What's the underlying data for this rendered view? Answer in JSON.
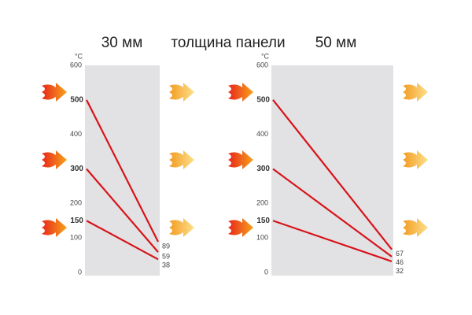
{
  "caption": "толщина панели",
  "chart_data": [
    {
      "type": "line",
      "title": "30 мм",
      "y_label": "°C",
      "categories": [
        null,
        null
      ],
      "ylim": [
        0,
        600
      ],
      "yticks": [
        0,
        100,
        200,
        400,
        600
      ],
      "series": [
        {
          "name": null,
          "color": "#d7141a",
          "values": [
            500,
            89
          ]
        },
        {
          "name": null,
          "color": "#d7141a",
          "values": [
            300,
            59
          ]
        },
        {
          "name": null,
          "color": "#d7141a",
          "values": [
            150,
            38
          ]
        }
      ]
    },
    {
      "type": "line",
      "title": "50 мм",
      "y_label": "°C",
      "categories": [
        null,
        null
      ],
      "ylim": [
        0,
        600
      ],
      "yticks": [
        0,
        100,
        200,
        400,
        600
      ],
      "series": [
        {
          "name": null,
          "color": "#d7141a",
          "values": [
            500,
            67
          ]
        },
        {
          "name": null,
          "color": "#d7141a",
          "values": [
            300,
            46
          ]
        },
        {
          "name": null,
          "color": "#d7141a",
          "values": [
            150,
            32
          ]
        }
      ]
    }
  ]
}
